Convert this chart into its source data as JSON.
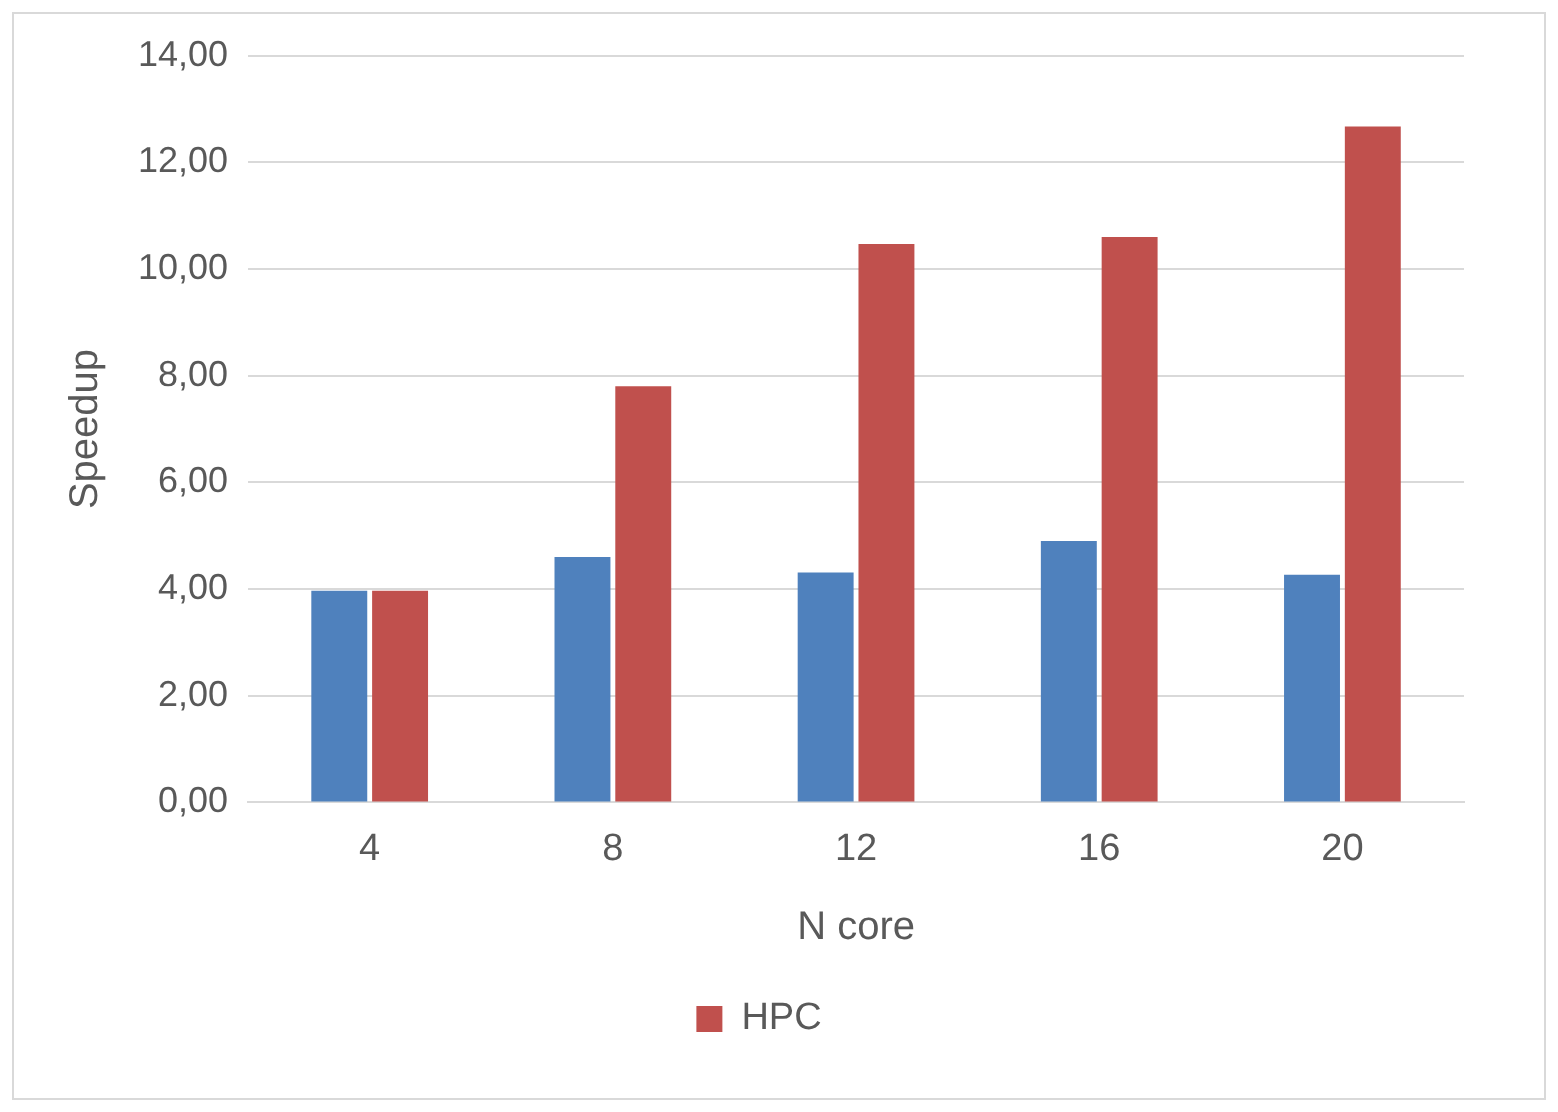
{
  "chart_data": {
    "type": "bar",
    "xlabel": "N core",
    "ylabel": "Speedup",
    "categories": [
      "4",
      "8",
      "12",
      "16",
      "20"
    ],
    "series": [
      {
        "color": "#4f81bd",
        "values": [
          3.97,
          4.6,
          4.31,
          4.9,
          4.27
        ]
      },
      {
        "name": "HPC",
        "color": "#c0504d",
        "values": [
          3.97,
          7.8,
          10.47,
          10.6,
          12.67
        ]
      }
    ],
    "ylim": [
      0,
      14
    ],
    "yticks": [
      {
        "value": 0,
        "label": "0,00"
      },
      {
        "value": 2,
        "label": "2,00"
      },
      {
        "value": 4,
        "label": "4,00"
      },
      {
        "value": 6,
        "label": "6,00"
      },
      {
        "value": 8,
        "label": "8,00"
      },
      {
        "value": 10,
        "label": "10,00"
      },
      {
        "value": 12,
        "label": "12,00"
      },
      {
        "value": 14,
        "label": "14,00"
      }
    ],
    "grid": "y",
    "legend": "bottom"
  }
}
